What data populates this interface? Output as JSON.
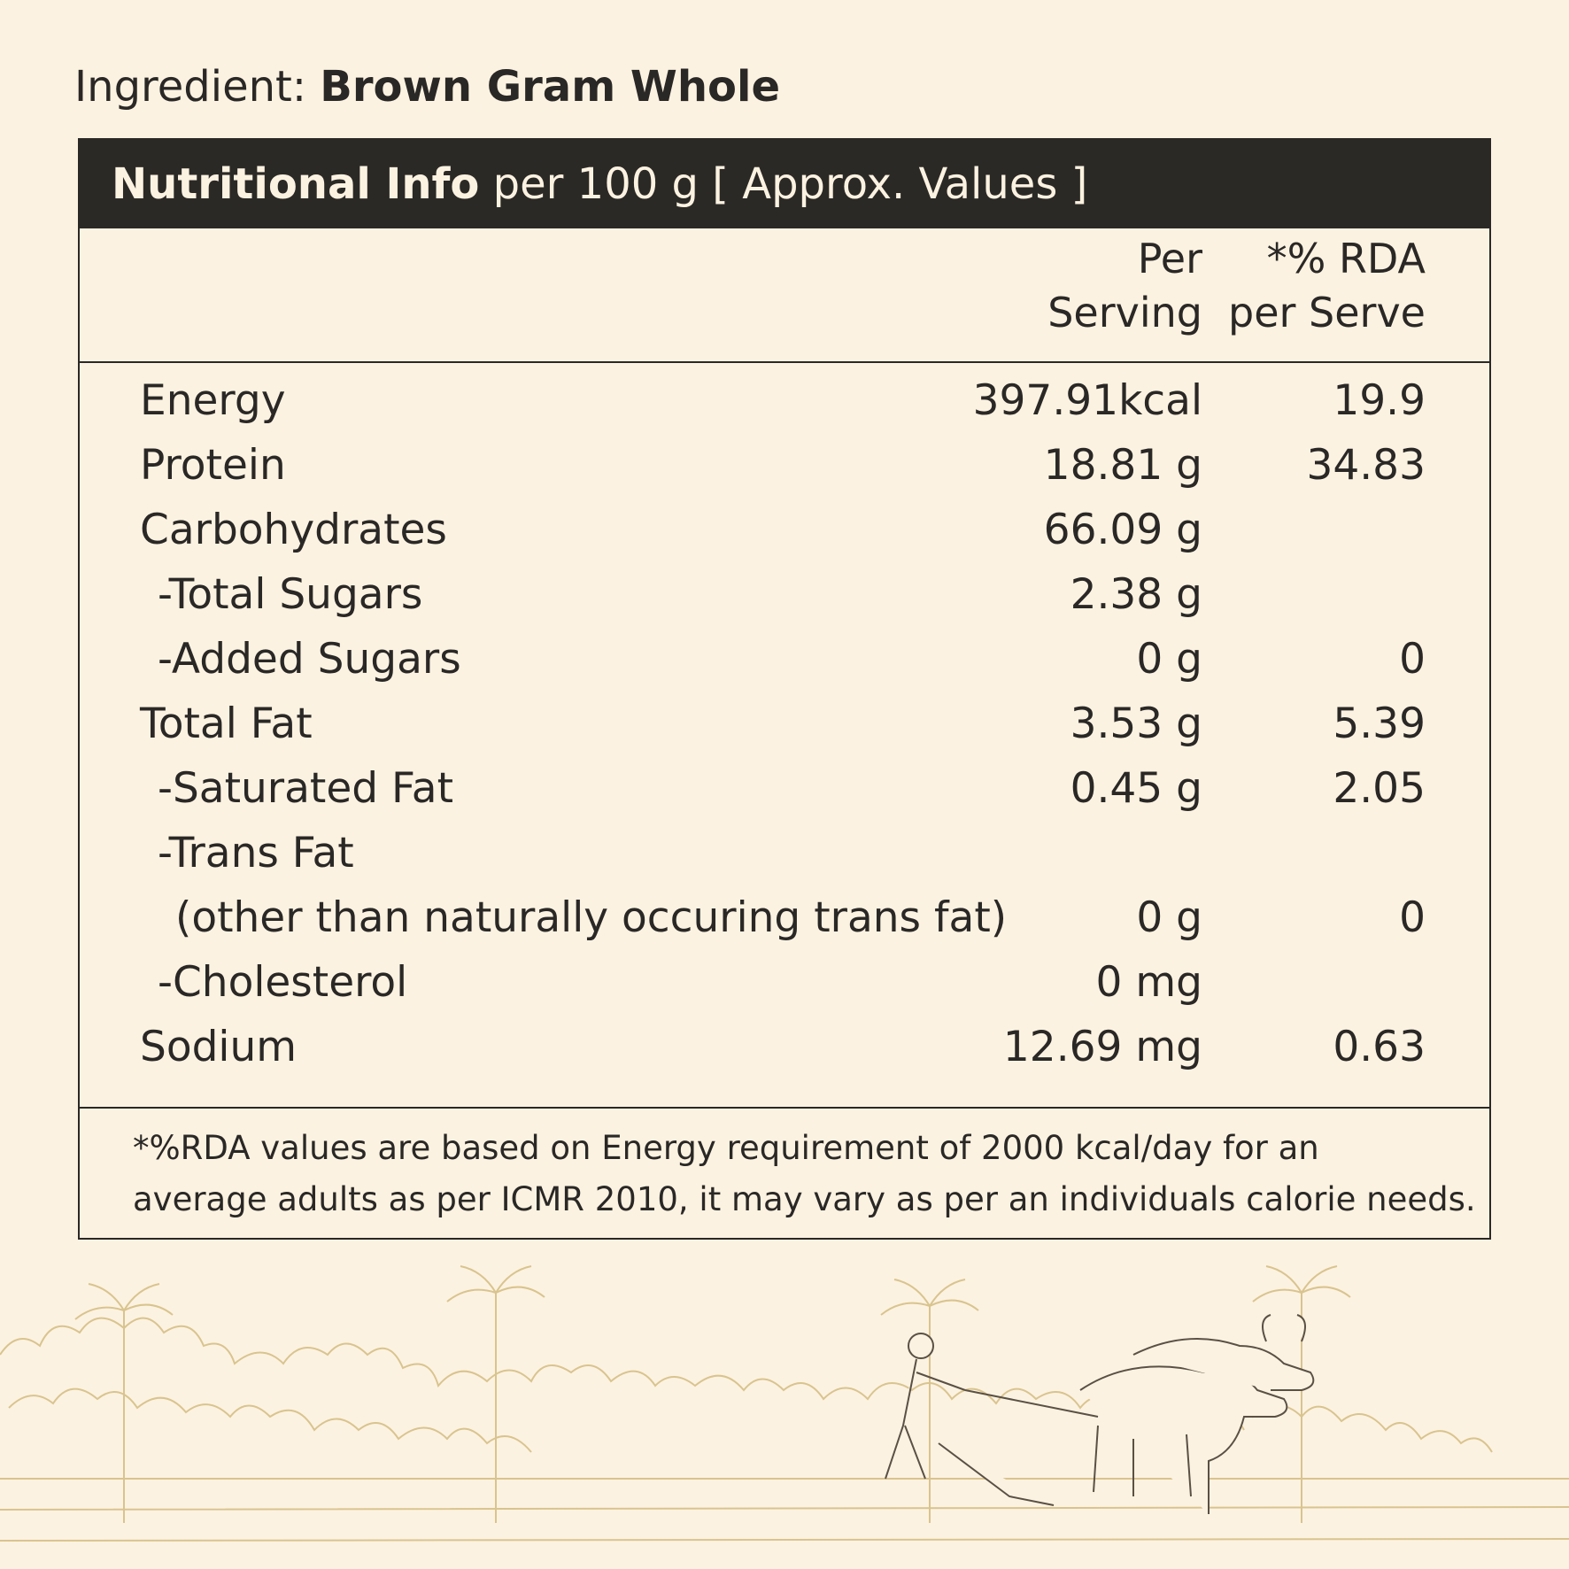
{
  "ingredient": {
    "prefix": "Ingredient: ",
    "name": "Brown Gram Whole"
  },
  "panel": {
    "title_bold": "Nutritional Info",
    "title_rest": " per 100 g [ Approx. Values ]",
    "columns": {
      "per_serving_line1": "Per",
      "per_serving_line2": "Serving",
      "rda_line1": "*% RDA",
      "rda_line2": "per Serve"
    },
    "rows": [
      {
        "label": "Energy",
        "value": "397.91kcal",
        "rda": "19.9"
      },
      {
        "label": "Protein",
        "value": "18.81 g",
        "rda": "34.83"
      },
      {
        "label": "Carbohydrates",
        "value": "66.09 g",
        "rda": ""
      },
      {
        "label": "-Total Sugars",
        "value": "2.38 g",
        "rda": ""
      },
      {
        "label": "-Added Sugars",
        "value": "0 g",
        "rda": "0"
      },
      {
        "label": "Total Fat",
        "value": "3.53 g",
        "rda": "5.39"
      },
      {
        "label": "-Saturated Fat",
        "value": "0.45 g",
        "rda": "2.05"
      },
      {
        "label": "-Trans Fat",
        "value": "",
        "rda": ""
      },
      {
        "label": "(other than naturally occuring trans fat)",
        "value": "0 g",
        "rda": "0"
      },
      {
        "label": "-Cholesterol",
        "value": "0 mg",
        "rda": ""
      },
      {
        "label": "Sodium",
        "value": "12.69 mg",
        "rda": "0.63"
      }
    ],
    "footnote_line1": "*%RDA values are based on Energy requirement of 2000 kcal/day for an",
    "footnote_line2": "average adults as per ICMR 2010, it may vary as per an individuals calorie needs."
  },
  "colors": {
    "background": "#fcf2e1",
    "text": "#2a2826",
    "header_bar": "#2b2926",
    "illustration_line": "#d9c48f"
  },
  "illustration": "farmer-plowing-with-oxen-scene"
}
